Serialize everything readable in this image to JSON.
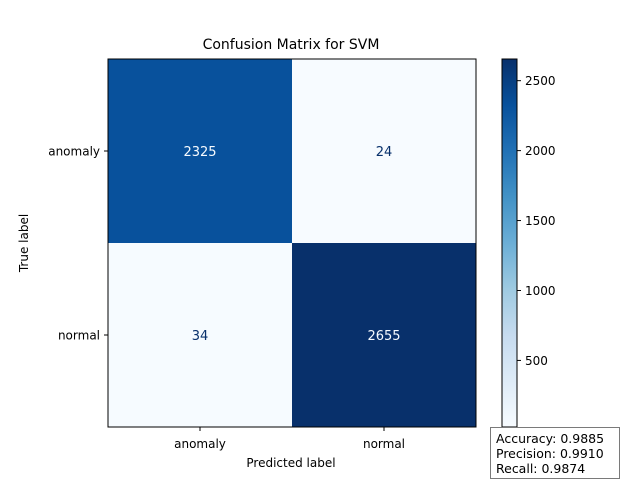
{
  "chart_data": {
    "type": "heatmap",
    "title": "Confusion Matrix for SVM",
    "xlabel": "Predicted label",
    "ylabel": "True label",
    "x_categories": [
      "anomaly",
      "normal"
    ],
    "y_categories": [
      "anomaly",
      "normal"
    ],
    "matrix": [
      [
        2325,
        24
      ],
      [
        34,
        2655
      ]
    ],
    "matrix_text": [
      [
        "2325",
        "24"
      ],
      [
        "34",
        "2655"
      ]
    ],
    "colormap": "Blues",
    "color_range": [
      24,
      2655
    ],
    "colorbar_ticks": [
      500,
      1000,
      1500,
      2000,
      2500
    ],
    "colorbar_tick_labels": [
      "500",
      "1000",
      "1500",
      "2000",
      "2500"
    ]
  },
  "metrics": {
    "accuracy": "Accuracy: 0.9885",
    "precision": "Precision: 0.9910",
    "recall": "Recall: 0.9874"
  }
}
